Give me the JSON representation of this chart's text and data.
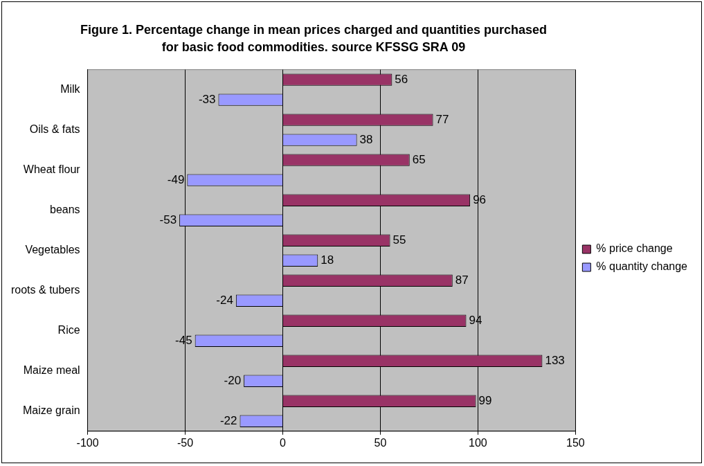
{
  "chart_data": {
    "type": "bar",
    "orientation": "horizontal",
    "title": "Figure 1. Percentage change in mean prices charged and quantities purchased for basic food commodities. source KFSSG SRA 09",
    "categories": [
      "Milk",
      "Oils & fats",
      "Wheat flour",
      "beans",
      "Vegetables",
      "roots & tubers",
      "Rice",
      "Maize meal",
      "Maize grain"
    ],
    "series": [
      {
        "name": "% price change",
        "color": "#993366",
        "values": [
          56,
          77,
          65,
          96,
          55,
          87,
          94,
          133,
          99
        ]
      },
      {
        "name": "% quantity change",
        "color": "#9999ff",
        "values": [
          -33,
          38,
          -49,
          -53,
          18,
          -24,
          -45,
          -20,
          -22
        ]
      }
    ],
    "xlim": [
      -100,
      150
    ],
    "xticks": [
      -100,
      -50,
      0,
      50,
      100,
      150
    ],
    "grid": "x",
    "legend": "right",
    "data_labels": true
  }
}
